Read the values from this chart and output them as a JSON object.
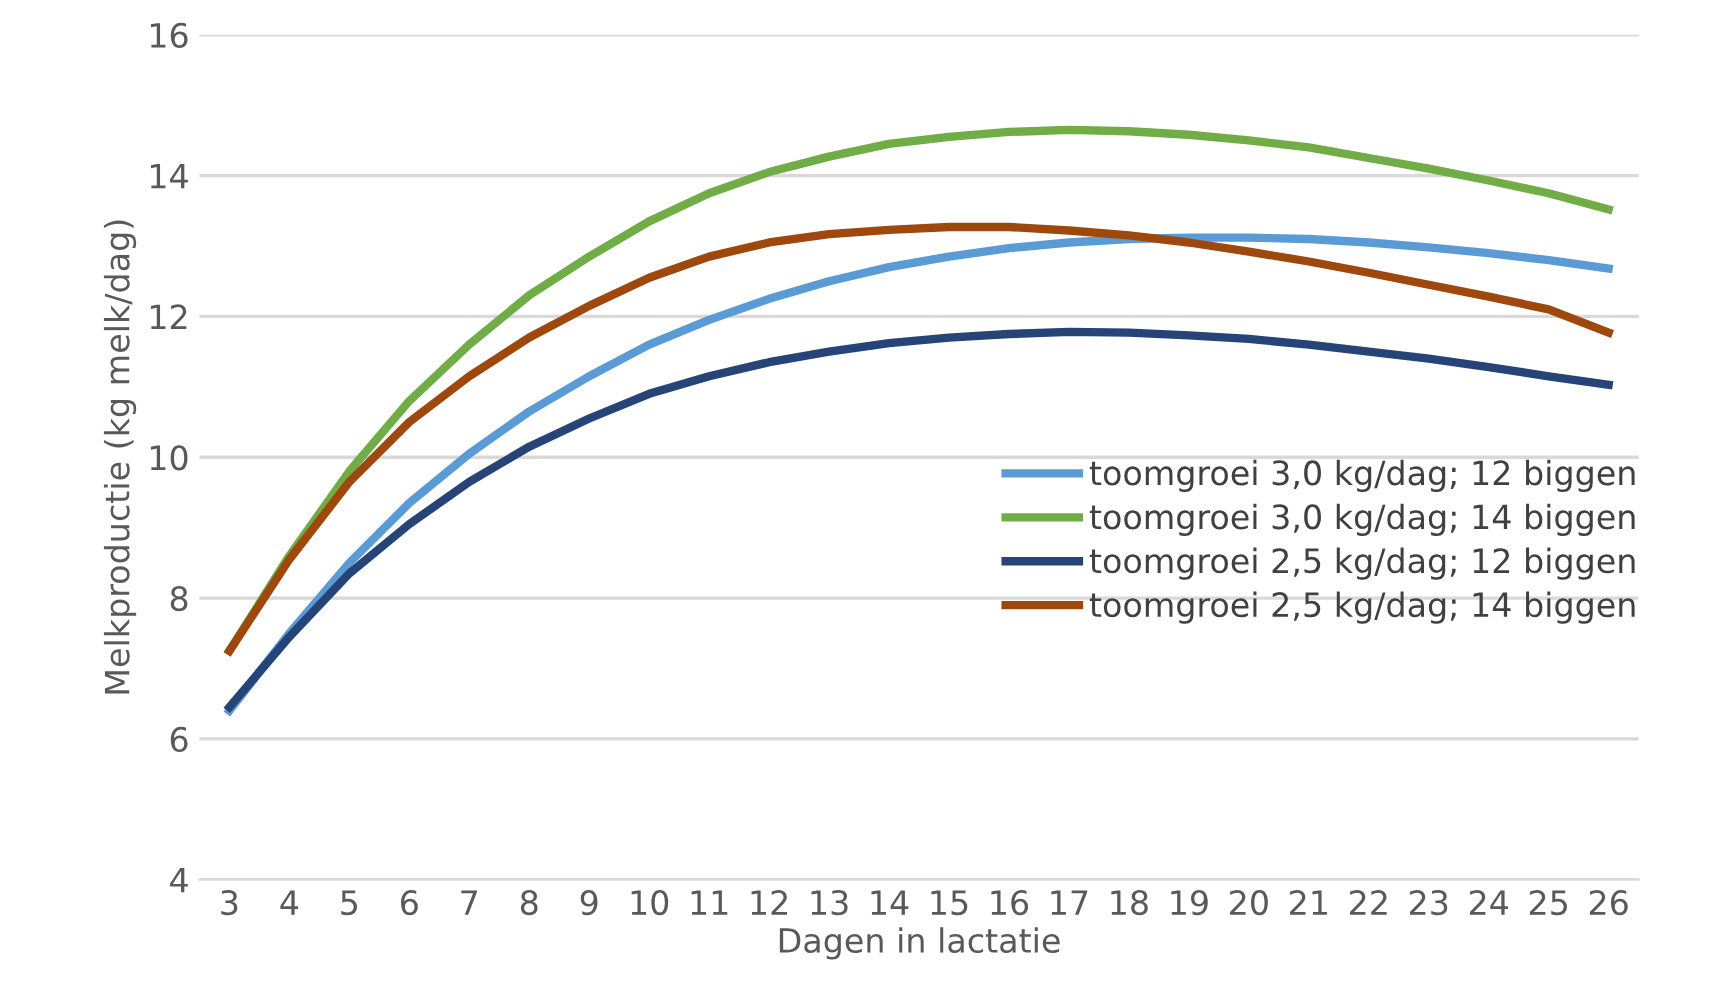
{
  "chart_data": {
    "type": "line",
    "xlabel": "Dagen in lactatie",
    "ylabel": "Melkproductie (kg melk/dag)",
    "categories": [
      "3",
      "4",
      "5",
      "6",
      "7",
      "8",
      "9",
      "10",
      "11",
      "12",
      "13",
      "14",
      "15",
      "16",
      "17",
      "18",
      "19",
      "20",
      "21",
      "22",
      "23",
      "24",
      "25",
      "26"
    ],
    "ylim": [
      4,
      16
    ],
    "yticks": [
      4,
      6,
      8,
      10,
      12,
      14,
      16
    ],
    "grid": "y",
    "legend": "right",
    "line_style": "solid",
    "marker": "none",
    "series": [
      {
        "name": "toomgroei 3,0 kg/dag; 12 biggen",
        "color": "#5b9bd5",
        "values": [
          6.4,
          7.5,
          8.5,
          9.35,
          10.05,
          10.65,
          11.15,
          11.6,
          11.95,
          12.25,
          12.5,
          12.7,
          12.85,
          12.97,
          13.05,
          13.1,
          13.12,
          13.12,
          13.1,
          13.05,
          12.98,
          12.9,
          12.8,
          12.68
        ]
      },
      {
        "name": "toomgroei 3,0 kg/dag; 14 biggen",
        "color": "#70ad47",
        "values": [
          7.25,
          8.6,
          9.8,
          10.8,
          11.6,
          12.3,
          12.85,
          13.35,
          13.75,
          14.05,
          14.27,
          14.45,
          14.55,
          14.62,
          14.65,
          14.63,
          14.58,
          14.5,
          14.4,
          14.25,
          14.1,
          13.93,
          13.75,
          13.52
        ]
      },
      {
        "name": "toomgroei 2,5 kg/dag; 12 biggen",
        "color": "#264478",
        "values": [
          6.45,
          7.45,
          8.35,
          9.05,
          9.65,
          10.15,
          10.55,
          10.9,
          11.15,
          11.35,
          11.5,
          11.62,
          11.7,
          11.75,
          11.78,
          11.77,
          11.73,
          11.68,
          11.6,
          11.5,
          11.4,
          11.28,
          11.15,
          11.03
        ]
      },
      {
        "name": "toomgroei 2,5 kg/dag; 14 biggen",
        "color": "#9e480e",
        "values": [
          7.25,
          8.55,
          9.65,
          10.5,
          11.15,
          11.7,
          12.15,
          12.55,
          12.85,
          13.05,
          13.17,
          13.23,
          13.27,
          13.27,
          13.22,
          13.15,
          13.05,
          12.92,
          12.78,
          12.62,
          12.45,
          12.28,
          12.1,
          11.77
        ]
      }
    ]
  }
}
